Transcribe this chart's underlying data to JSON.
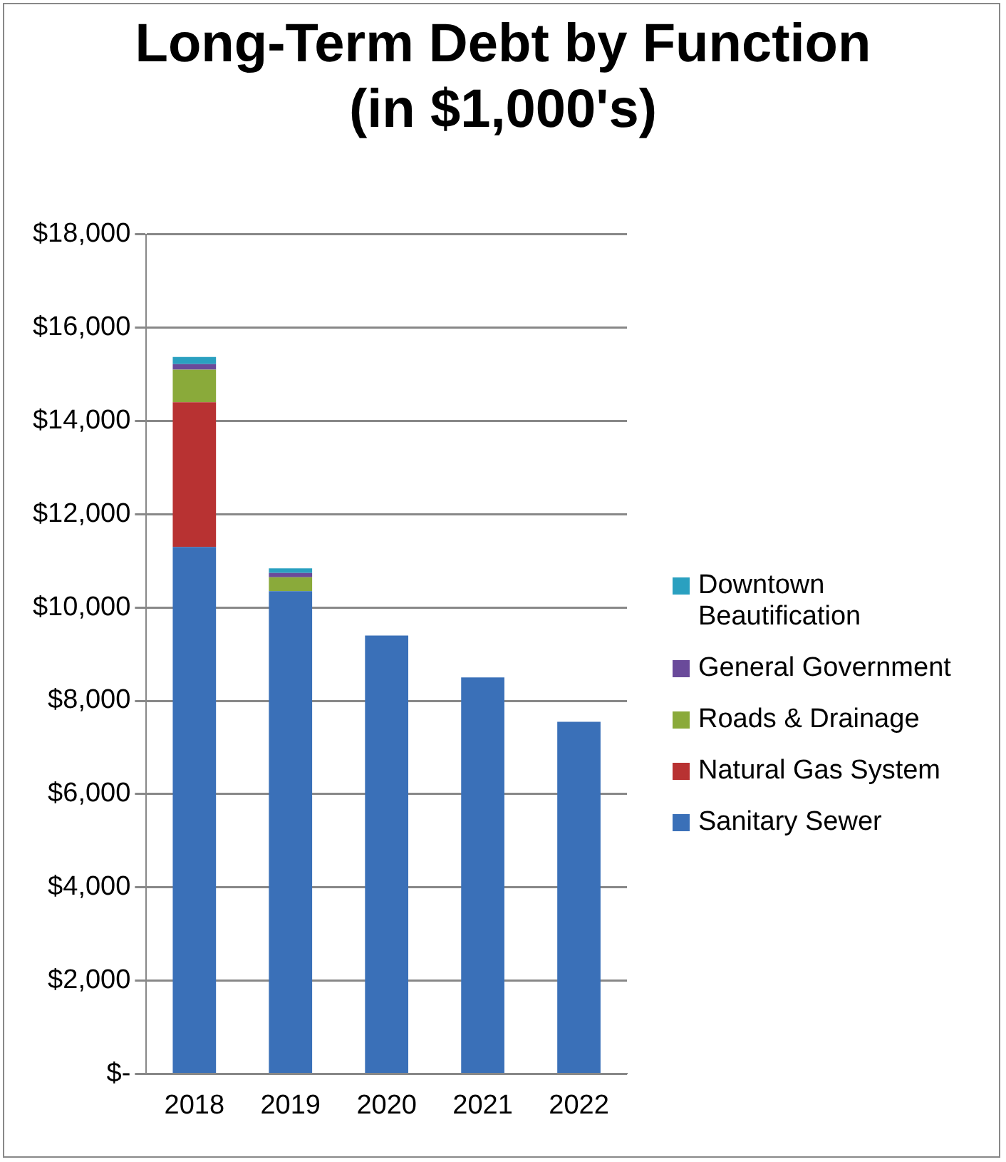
{
  "chart_data": {
    "type": "bar",
    "title": "Long-Term Debt by Function\n(in $1,000's)",
    "stacked": true,
    "categories": [
      "2018",
      "2019",
      "2020",
      "2021",
      "2022"
    ],
    "series": [
      {
        "name": "Sanitary Sewer",
        "color": "#3a70b8",
        "values": [
          11300,
          10350,
          9400,
          8500,
          7550
        ]
      },
      {
        "name": "Natural Gas System",
        "color": "#b83232",
        "values": [
          3100,
          0,
          0,
          0,
          0
        ]
      },
      {
        "name": "Roads & Drainage",
        "color": "#8aaa3a",
        "values": [
          700,
          300,
          0,
          0,
          0
        ]
      },
      {
        "name": "General Government",
        "color": "#6a4a9a",
        "values": [
          120,
          90,
          0,
          0,
          0
        ]
      },
      {
        "name": "Downtown Beautification",
        "color": "#2aa0c0",
        "values": [
          150,
          100,
          0,
          0,
          0
        ]
      }
    ],
    "ylim": [
      0,
      18000
    ],
    "yticks": [
      {
        "value": 0,
        "label": "$-"
      },
      {
        "value": 2000,
        "label": "$2,000"
      },
      {
        "value": 4000,
        "label": "$4,000"
      },
      {
        "value": 6000,
        "label": "$6,000"
      },
      {
        "value": 8000,
        "label": "$8,000"
      },
      {
        "value": 10000,
        "label": "$10,000"
      },
      {
        "value": 12000,
        "label": "$12,000"
      },
      {
        "value": 14000,
        "label": "$14,000"
      },
      {
        "value": 16000,
        "label": "$16,000"
      },
      {
        "value": 18000,
        "label": "$18,000"
      }
    ],
    "grid": "y",
    "legend": "right"
  }
}
